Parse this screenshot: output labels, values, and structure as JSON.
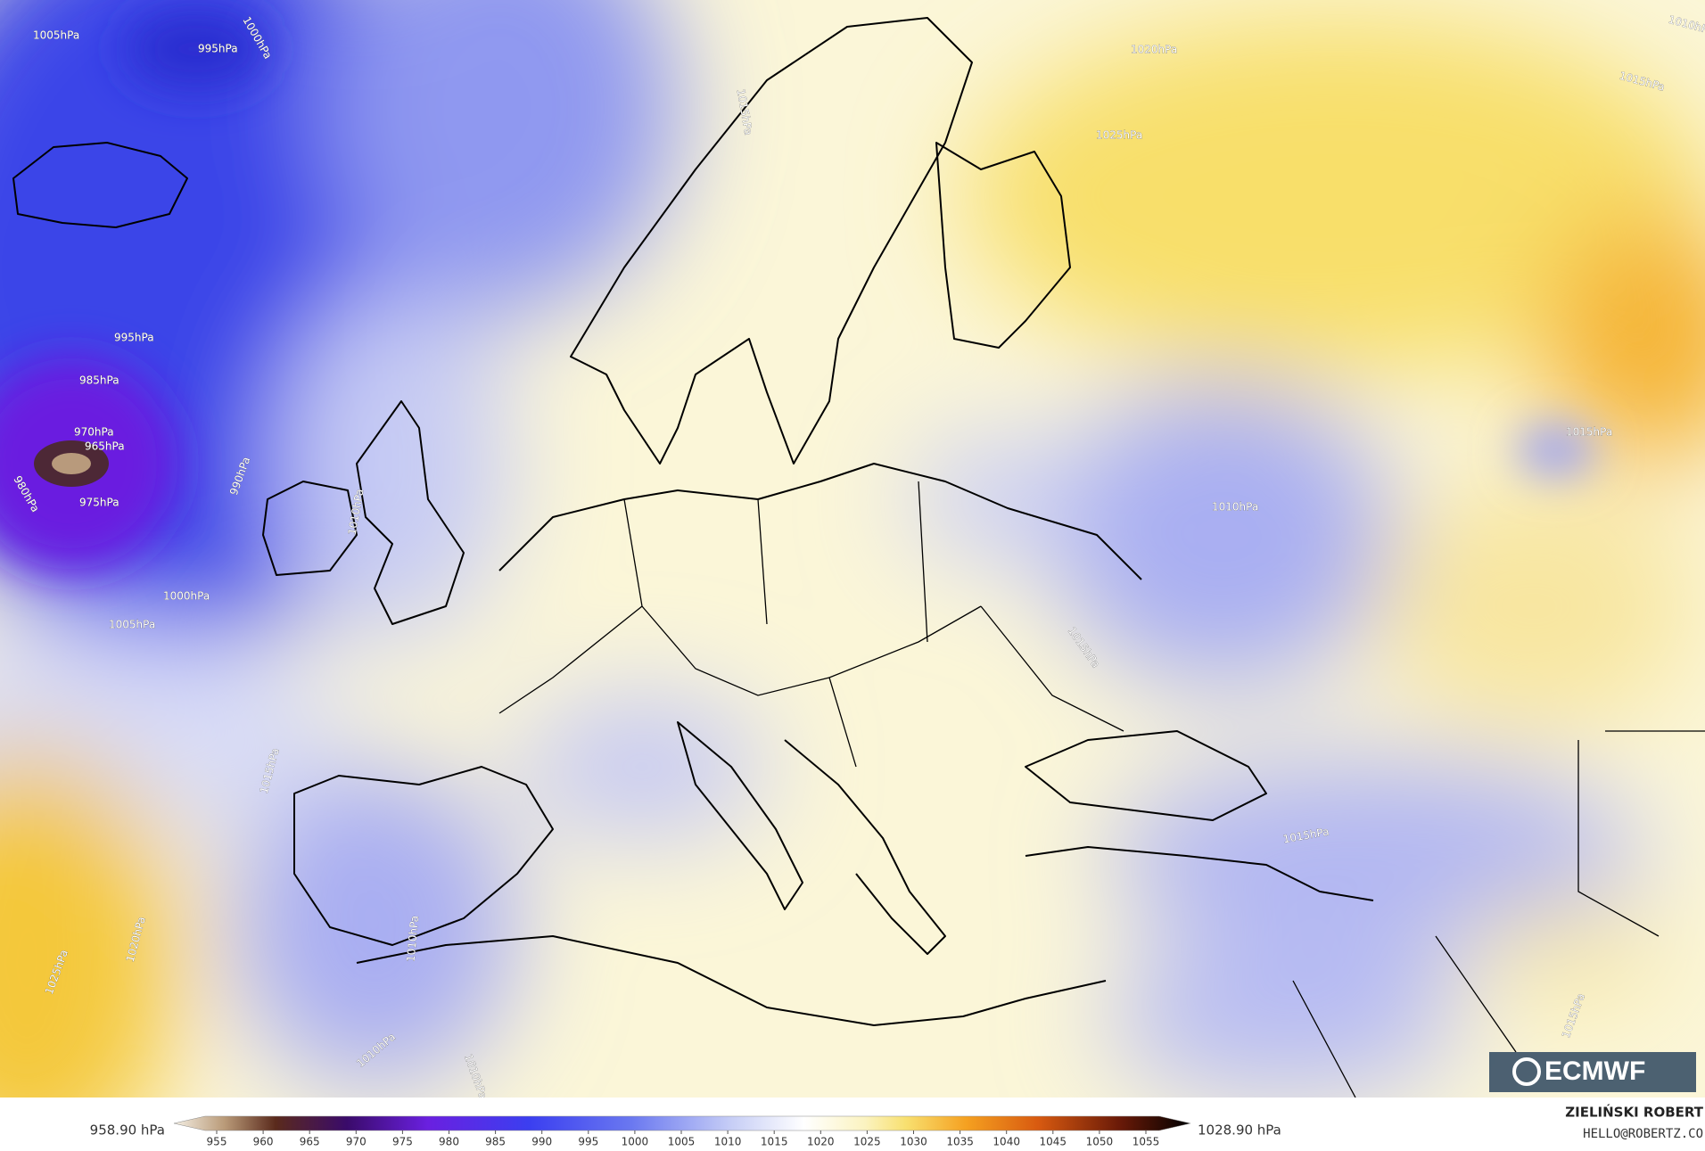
{
  "isobar_labels": [
    "1005hPa",
    "995hPa",
    "1000hPa",
    "1015hPa",
    "1020hPa",
    "1025hPa",
    "1015hPa",
    "1010hPa",
    "995hPa",
    "985hPa",
    "970hPa",
    "965hPa",
    "980hPa",
    "975hPa",
    "990hPa",
    "1010hPa",
    "1000hPa",
    "1005hPa",
    "1015hPa",
    "1010hPa",
    "1015hPa",
    "1015hPa",
    "1015hPa",
    "1020hPa",
    "1025hPa",
    "1010hPa",
    "1010hPa",
    "1010hPa",
    "1015hPa"
  ],
  "colorbar": {
    "ticks": [
      955,
      960,
      965,
      970,
      975,
      980,
      985,
      990,
      995,
      1000,
      1005,
      1010,
      1015,
      1020,
      1025,
      1030,
      1035,
      1040,
      1045,
      1050,
      1055
    ],
    "min_label": "958.90 hPa",
    "max_label": "1028.90 hPa"
  },
  "credits": {
    "author": "ZIELIŃSKI ROBERT",
    "contact": "HELLO@ROBERTZ.CO"
  },
  "logo": "ECMWF"
}
